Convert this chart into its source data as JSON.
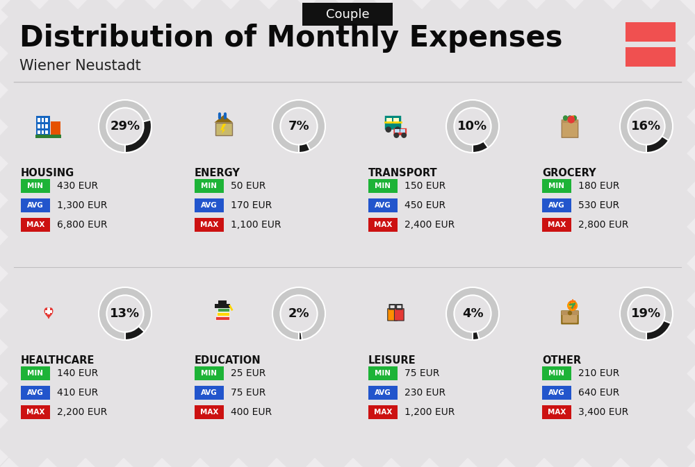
{
  "title": "Distribution of Monthly Expenses",
  "subtitle": "Wiener Neustadt",
  "tag": "Couple",
  "bg_color": "#eeecee",
  "title_color": "#0a0a0a",
  "subtitle_color": "#222222",
  "tag_bg": "#111111",
  "tag_color": "#ffffff",
  "flag_color": "#f05050",
  "categories": [
    {
      "name": "HOUSING",
      "percent": 29,
      "min": "430 EUR",
      "avg": "1,300 EUR",
      "max": "6,800 EUR",
      "row": 0,
      "col": 0
    },
    {
      "name": "ENERGY",
      "percent": 7,
      "min": "50 EUR",
      "avg": "170 EUR",
      "max": "1,100 EUR",
      "row": 0,
      "col": 1
    },
    {
      "name": "TRANSPORT",
      "percent": 10,
      "min": "150 EUR",
      "avg": "450 EUR",
      "max": "2,400 EUR",
      "row": 0,
      "col": 2
    },
    {
      "name": "GROCERY",
      "percent": 16,
      "min": "180 EUR",
      "avg": "530 EUR",
      "max": "2,800 EUR",
      "row": 0,
      "col": 3
    },
    {
      "name": "HEALTHCARE",
      "percent": 13,
      "min": "140 EUR",
      "avg": "410 EUR",
      "max": "2,200 EUR",
      "row": 1,
      "col": 0
    },
    {
      "name": "EDUCATION",
      "percent": 2,
      "min": "25 EUR",
      "avg": "75 EUR",
      "max": "400 EUR",
      "row": 1,
      "col": 1
    },
    {
      "name": "LEISURE",
      "percent": 4,
      "min": "75 EUR",
      "avg": "230 EUR",
      "max": "1,200 EUR",
      "row": 1,
      "col": 2
    },
    {
      "name": "OTHER",
      "percent": 19,
      "min": "210 EUR",
      "avg": "640 EUR",
      "max": "3,400 EUR",
      "row": 1,
      "col": 3
    }
  ],
  "min_color": "#1db337",
  "avg_color": "#2255cc",
  "max_color": "#cc1111",
  "donut_fg": "#1a1a1a",
  "donut_bg": "#c8c8c8",
  "value_color": "#111111",
  "stripe_color": "#e4e2e4",
  "divider_color": "#c0bec0"
}
